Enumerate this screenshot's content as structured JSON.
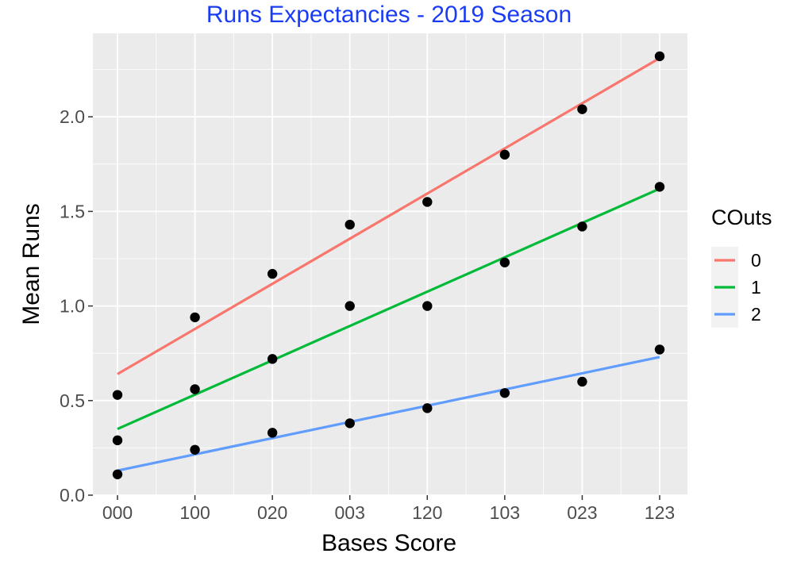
{
  "chart_data": {
    "type": "scatter",
    "title": "Runs Expectancies - 2019 Season",
    "title_color": "#1a3cf5",
    "xlabel": "Bases Score",
    "ylabel": "Mean Runs",
    "categories": [
      "000",
      "100",
      "020",
      "003",
      "120",
      "103",
      "023",
      "123"
    ],
    "ylim": [
      0,
      2.38
    ],
    "yticks": [
      0.0,
      0.5,
      1.0,
      1.5,
      2.0
    ],
    "ytick_labels": [
      "0.0",
      "0.5",
      "1.0",
      "1.5",
      "2.0"
    ],
    "grid": true,
    "legend": {
      "title": "COuts",
      "placement": "right"
    },
    "series": [
      {
        "name": "0",
        "color": "#f8766d",
        "points": [
          0.53,
          0.94,
          1.17,
          1.43,
          1.55,
          1.8,
          2.04,
          2.32
        ],
        "fit": [
          0.64,
          2.31
        ]
      },
      {
        "name": "1",
        "color": "#00ba38",
        "points": [
          0.29,
          0.56,
          0.72,
          1.0,
          1.0,
          1.23,
          1.42,
          1.63
        ],
        "fit": [
          0.35,
          1.62
        ]
      },
      {
        "name": "2",
        "color": "#619cff",
        "points": [
          0.11,
          0.24,
          0.33,
          0.38,
          0.46,
          0.54,
          0.6,
          0.77
        ],
        "fit": [
          0.13,
          0.73
        ]
      }
    ],
    "colors": {
      "panel_background": "#ebebeb",
      "grid_line": "#ffffff",
      "point": "#000000",
      "legend_key_background": "#f2f2f2"
    }
  }
}
